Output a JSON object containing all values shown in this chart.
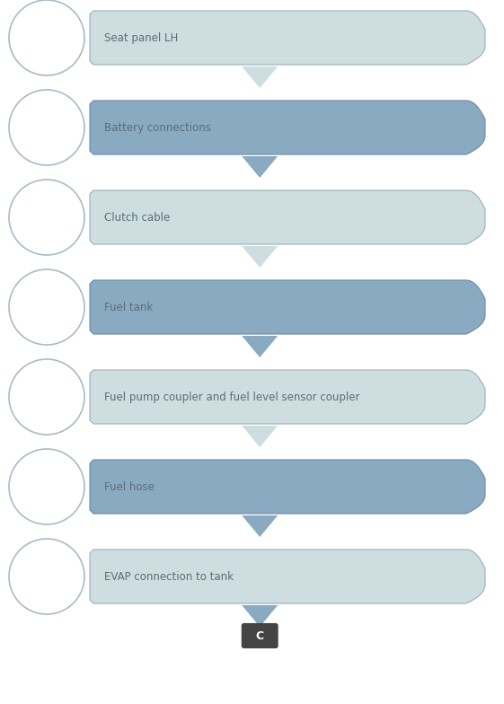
{
  "steps": [
    {
      "label": "Seat panel LH",
      "color": "#cddde0",
      "border": "#9ab0b8"
    },
    {
      "label": "Battery connections",
      "color": "#8aaac2",
      "border": "#6a8aaa"
    },
    {
      "label": "Clutch cable",
      "color": "#cddde0",
      "border": "#9ab0b8"
    },
    {
      "label": "Fuel tank",
      "color": "#8aaac2",
      "border": "#6a8aaa"
    },
    {
      "label": "Fuel pump coupler and fuel level sensor coupler",
      "color": "#cddde0",
      "border": "#9ab0b8"
    },
    {
      "label": "Fuel hose",
      "color": "#8aaac2",
      "border": "#6a8aaa"
    },
    {
      "label": "EVAP connection to tank",
      "color": "#cddde0",
      "border": "#9ab0b8"
    }
  ],
  "arrow_colors": [
    "#8aaac2",
    "#cddde0",
    "#8aaac2",
    "#cddde0",
    "#8aaac2",
    "#cddde0",
    "#8aaac2"
  ],
  "connector_label": "C",
  "connector_color": "#444444",
  "background": "#ffffff",
  "text_color": "#5a6e78",
  "text_fontsize": 8.5,
  "connector_fontsize": 9
}
